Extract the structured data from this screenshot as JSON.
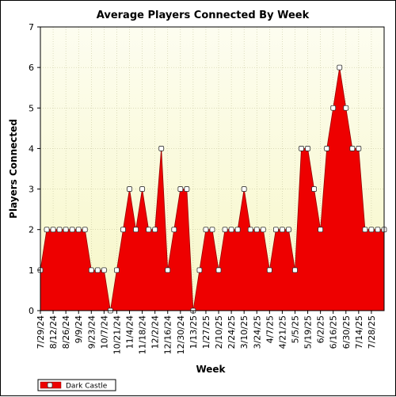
{
  "chart_data": {
    "type": "area",
    "title": "Average Players Connected By Week",
    "xlabel": "Week",
    "ylabel": "Players Connected",
    "ylim": [
      0,
      7
    ],
    "yticks": [
      0,
      1,
      2,
      3,
      4,
      5,
      6,
      7
    ],
    "grid": true,
    "legend": "bottom-left",
    "x_tick_labels": [
      "7/29/24",
      "8/12/24",
      "8/26/24",
      "9/9/24",
      "9/23/24",
      "10/7/24",
      "10/21/24",
      "11/4/24",
      "11/18/24",
      "12/2/24",
      "12/16/24",
      "12/30/24",
      "1/13/25",
      "1/27/25",
      "2/10/25",
      "2/24/25",
      "3/10/25",
      "3/24/25",
      "4/7/25",
      "4/21/25",
      "5/5/25",
      "5/19/25",
      "6/2/25",
      "6/16/25",
      "6/30/25",
      "7/14/25",
      "7/28/25"
    ],
    "series": [
      {
        "name": "Dark Castle",
        "color": "#ee0000",
        "values": [
          1,
          2,
          2,
          2,
          2,
          2,
          2,
          2,
          1,
          1,
          1,
          0,
          1,
          2,
          3,
          2,
          3,
          2,
          2,
          4,
          1,
          2,
          3,
          3,
          0,
          1,
          2,
          2,
          1,
          2,
          2,
          2,
          3,
          2,
          2,
          2,
          1,
          2,
          2,
          2,
          1,
          4,
          4,
          3,
          2,
          4,
          5,
          6,
          5,
          4,
          4,
          2,
          2,
          2,
          2
        ]
      }
    ]
  },
  "colors": {
    "plot_bg_top": "#fdfdf0",
    "plot_bg_bottom": "#f7f7c8",
    "area_fill": "#ee0000",
    "grid": "#c8c8a0"
  }
}
